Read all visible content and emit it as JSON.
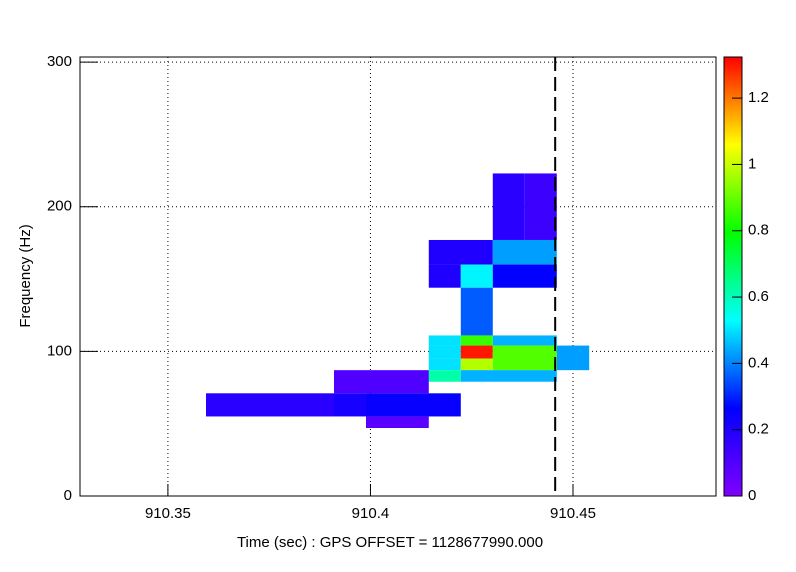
{
  "chart_data": {
    "type": "heatmap",
    "xlabel": "Time (sec) : GPS OFFSET = 1128677990.000",
    "ylabel": "Frequency (Hz)",
    "xlim": [
      910.3283,
      910.4853
    ],
    "xticks": [
      910.35,
      910.4,
      910.45
    ],
    "ylim": [
      0,
      303.5
    ],
    "yticks": [
      0,
      100,
      200,
      300
    ],
    "zlim": [
      0,
      1.324
    ],
    "zticks": [
      0,
      0.2,
      0.4,
      0.6,
      0.8,
      1,
      1.2
    ],
    "colorscale": [
      "#8000ff",
      "#0000ff",
      "#00ffff",
      "#00ff00",
      "#ffff00",
      "#ff0000"
    ],
    "grid": true,
    "marker_x": 910.4456,
    "cells": [
      {
        "x": [
          910.4302,
          910.4381
        ],
        "y": [
          177,
          223
        ],
        "z": 0.18
      },
      {
        "x": [
          910.4381,
          910.446
        ],
        "y": [
          177,
          223
        ],
        "z": 0.14
      },
      {
        "x": [
          910.4144,
          910.4302
        ],
        "y": [
          160,
          177
        ],
        "z": 0.2
      },
      {
        "x": [
          910.4302,
          910.446
        ],
        "y": [
          160,
          177
        ],
        "z": 0.43
      },
      {
        "x": [
          910.4144,
          910.4223
        ],
        "y": [
          144,
          160
        ],
        "z": 0.2
      },
      {
        "x": [
          910.4223,
          910.4302
        ],
        "y": [
          144,
          160
        ],
        "z": 0.52
      },
      {
        "x": [
          910.4302,
          910.446
        ],
        "y": [
          144,
          160
        ],
        "z": 0.26
      },
      {
        "x": [
          910.4223,
          910.4302
        ],
        "y": [
          111,
          144
        ],
        "z": 0.36
      },
      {
        "x": [
          910.4144,
          910.4223
        ],
        "y": [
          104,
          111
        ],
        "z": 0.5
      },
      {
        "x": [
          910.4223,
          910.4302
        ],
        "y": [
          104,
          111
        ],
        "z": 0.85
      },
      {
        "x": [
          910.4302,
          910.446
        ],
        "y": [
          104,
          111
        ],
        "z": 0.45
      },
      {
        "x": [
          910.4144,
          910.4223
        ],
        "y": [
          95,
          104
        ],
        "z": 0.5
      },
      {
        "x": [
          910.4223,
          910.4302
        ],
        "y": [
          95,
          104
        ],
        "z": 1.3
      },
      {
        "x": [
          910.4302,
          910.446
        ],
        "y": [
          87,
          104
        ],
        "z": 0.88
      },
      {
        "x": [
          910.446,
          910.454
        ],
        "y": [
          87,
          104
        ],
        "z": 0.43
      },
      {
        "x": [
          910.4144,
          910.4223
        ],
        "y": [
          87,
          95
        ],
        "z": 0.5
      },
      {
        "x": [
          910.4223,
          910.4302
        ],
        "y": [
          87,
          95
        ],
        "z": 0.98
      },
      {
        "x": [
          910.4144,
          910.4223
        ],
        "y": [
          79,
          87
        ],
        "z": 0.62
      },
      {
        "x": [
          910.4223,
          910.446
        ],
        "y": [
          79,
          87
        ],
        "z": 0.45
      },
      {
        "x": [
          910.391,
          910.4144
        ],
        "y": [
          71,
          87
        ],
        "z": 0.1
      },
      {
        "x": [
          910.3594,
          910.391
        ],
        "y": [
          55,
          71
        ],
        "z": 0.18
      },
      {
        "x": [
          910.391,
          910.3989
        ],
        "y": [
          55,
          71
        ],
        "z": 0.22
      },
      {
        "x": [
          910.3989,
          910.4223
        ],
        "y": [
          55,
          71
        ],
        "z": 0.25
      },
      {
        "x": [
          910.3989,
          910.4144
        ],
        "y": [
          47,
          55
        ],
        "z": 0.08
      }
    ]
  }
}
